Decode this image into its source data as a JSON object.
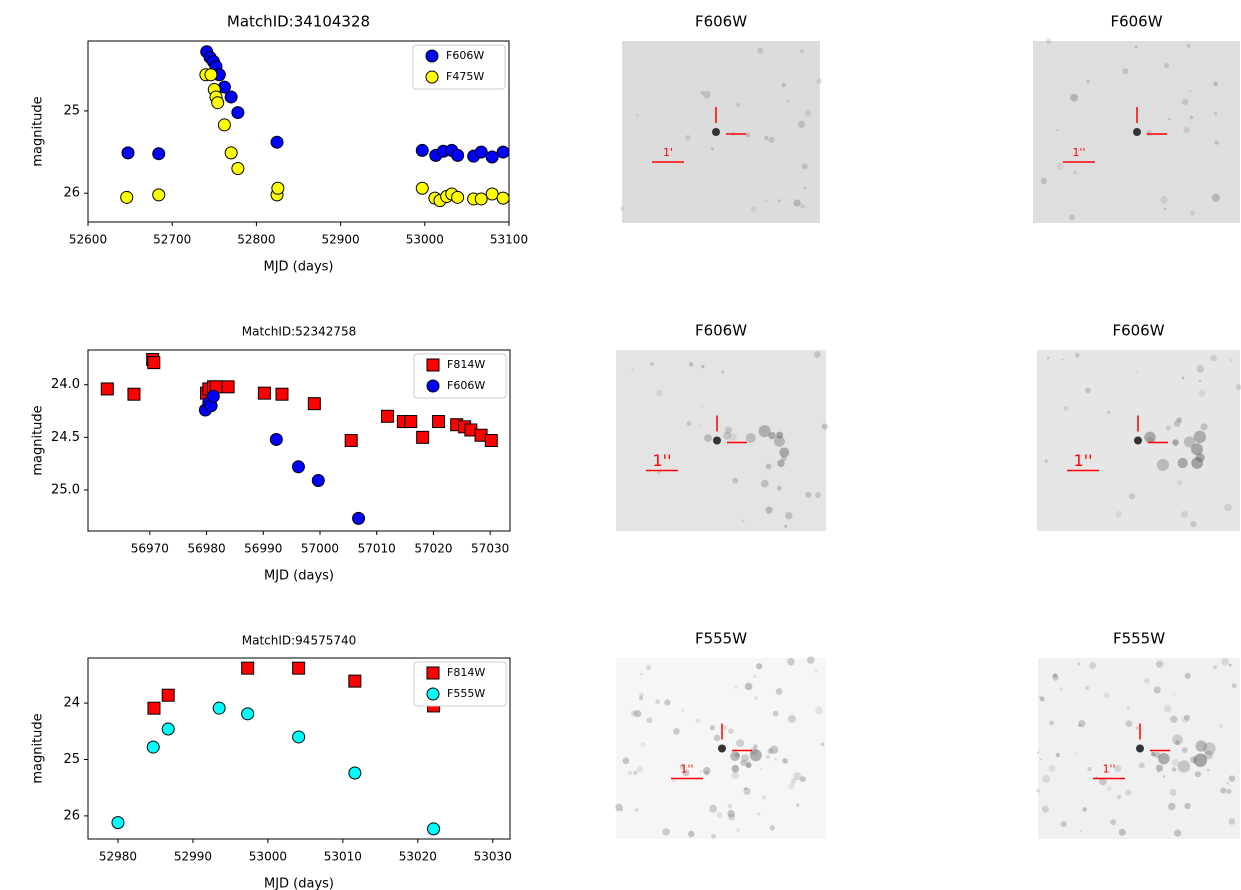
{
  "chart_data": [
    {
      "type": "scatter",
      "title": "MatchID:34104328",
      "xlabel": "MJD (days)",
      "ylabel": "magnitude",
      "xlim": [
        52600,
        53100
      ],
      "ylim": [
        26.35,
        24.15
      ],
      "xticks": [
        52600,
        52700,
        52800,
        52900,
        53000,
        53100
      ],
      "yticks": [
        25,
        26
      ],
      "legend": "upper right",
      "series": [
        {
          "name": "F606W",
          "color": "#0000ff",
          "marker": "circle",
          "x": [
            52647.5,
            52684,
            52741,
            52745,
            52749,
            52752,
            52756,
            52762,
            52770,
            52778,
            52824.5,
            52997,
            53013,
            53022,
            53032,
            53039,
            53058,
            53067,
            53080,
            53093
          ],
          "values": [
            25.51,
            25.52,
            24.28,
            24.35,
            24.4,
            24.46,
            24.56,
            24.71,
            24.83,
            25.02,
            25.38,
            25.48,
            25.54,
            25.49,
            25.48,
            25.54,
            25.55,
            25.5,
            25.56,
            25.5
          ]
        },
        {
          "name": "F475W",
          "color": "#ffff00",
          "marker": "circle",
          "x": [
            52646,
            52684,
            52740,
            52746,
            52750,
            52752,
            52754,
            52762,
            52770,
            52778,
            52824.5,
            52825.5,
            52997,
            53012,
            53018,
            53026,
            53032,
            53039,
            53058,
            53067,
            53080,
            53093
          ],
          "values": [
            26.05,
            26.02,
            24.56,
            24.56,
            24.74,
            24.83,
            24.9,
            25.17,
            25.51,
            25.7,
            26.02,
            25.94,
            25.94,
            26.06,
            26.09,
            26.04,
            26.01,
            26.05,
            26.07,
            26.07,
            26.01,
            26.06
          ]
        }
      ]
    },
    {
      "type": "scatter",
      "title": "MatchID:52342758",
      "xlabel": "MJD (days)",
      "ylabel": "magnitude",
      "xlim": [
        56959.1,
        57033.5
      ],
      "ylim": [
        25.39,
        23.67
      ],
      "xticks": [
        56970,
        56980,
        56990,
        57000,
        57010,
        57020,
        57030
      ],
      "yticks": [
        {
          "value": 24,
          "label": "24.0"
        },
        24.5,
        {
          "value": 25,
          "label": "25.0"
        }
      ],
      "legend": "upper right",
      "series": [
        {
          "name": "F814W",
          "color": "#ff0000",
          "marker": "square",
          "x": [
            56962.5,
            56967.2,
            56970.5,
            56970.7,
            56980,
            56980.4,
            56981.2,
            56981.7,
            56983.8,
            56990.2,
            56993.3,
            56999,
            57005.5,
            57011.9,
            57014.7,
            57016,
            57018.1,
            57020.9,
            57024.1,
            57025.5,
            57026.6,
            57028.4,
            57030.2
          ],
          "values": [
            24.04,
            24.09,
            23.76,
            23.79,
            24.08,
            24.04,
            24.02,
            24.02,
            24.02,
            24.08,
            24.09,
            24.18,
            24.53,
            24.3,
            24.35,
            24.35,
            24.5,
            24.35,
            24.38,
            24.4,
            24.43,
            24.48,
            24.53
          ]
        },
        {
          "name": "F606W",
          "color": "#0000ff",
          "marker": "circle",
          "x": [
            56979.8,
            56980.4,
            56980.8,
            56981.2,
            56992.3,
            56996.2,
            56999.7,
            57006.8
          ],
          "values": [
            24.24,
            24.17,
            24.2,
            24.11,
            24.52,
            24.78,
            24.91,
            25.27
          ]
        }
      ]
    },
    {
      "type": "scatter",
      "title": "MatchID:94575740",
      "xlabel": "MJD (days)",
      "ylabel": "magnitude",
      "xlim": [
        52976,
        53032.3
      ],
      "ylim": [
        26.41,
        23.2
      ],
      "xticks": [
        52980,
        52990,
        53000,
        53010,
        53020,
        53030
      ],
      "yticks": [
        24,
        25,
        26
      ],
      "legend": "upper right",
      "series": [
        {
          "name": "F814W",
          "color": "#ff0000",
          "marker": "square",
          "x": [
            52984.8,
            52986.7,
            52997.3,
            53004.1,
            53011.6,
            53022.1
          ],
          "values": [
            24.09,
            23.86,
            23.38,
            23.38,
            23.61,
            24.05
          ]
        },
        {
          "name": "F555W",
          "color": "#00ffff",
          "marker": "circle",
          "x": [
            52980,
            52984.7,
            52986.7,
            52993.5,
            52997.3,
            53004.1,
            53011.6,
            53022.1
          ],
          "values": [
            26.12,
            24.78,
            24.46,
            24.09,
            24.19,
            24.6,
            25.24,
            26.23
          ]
        }
      ]
    }
  ],
  "images": [
    {
      "title": "F606W",
      "scale_label": "1'"
    },
    {
      "title": "F606W",
      "scale_label": "1''"
    },
    {
      "title": "F606W",
      "scale_label": "1''"
    },
    {
      "title": "F606W",
      "scale_label": "1''"
    },
    {
      "title": "F555W",
      "scale_label": "1''"
    },
    {
      "title": "F555W",
      "scale_label": "1''"
    }
  ]
}
